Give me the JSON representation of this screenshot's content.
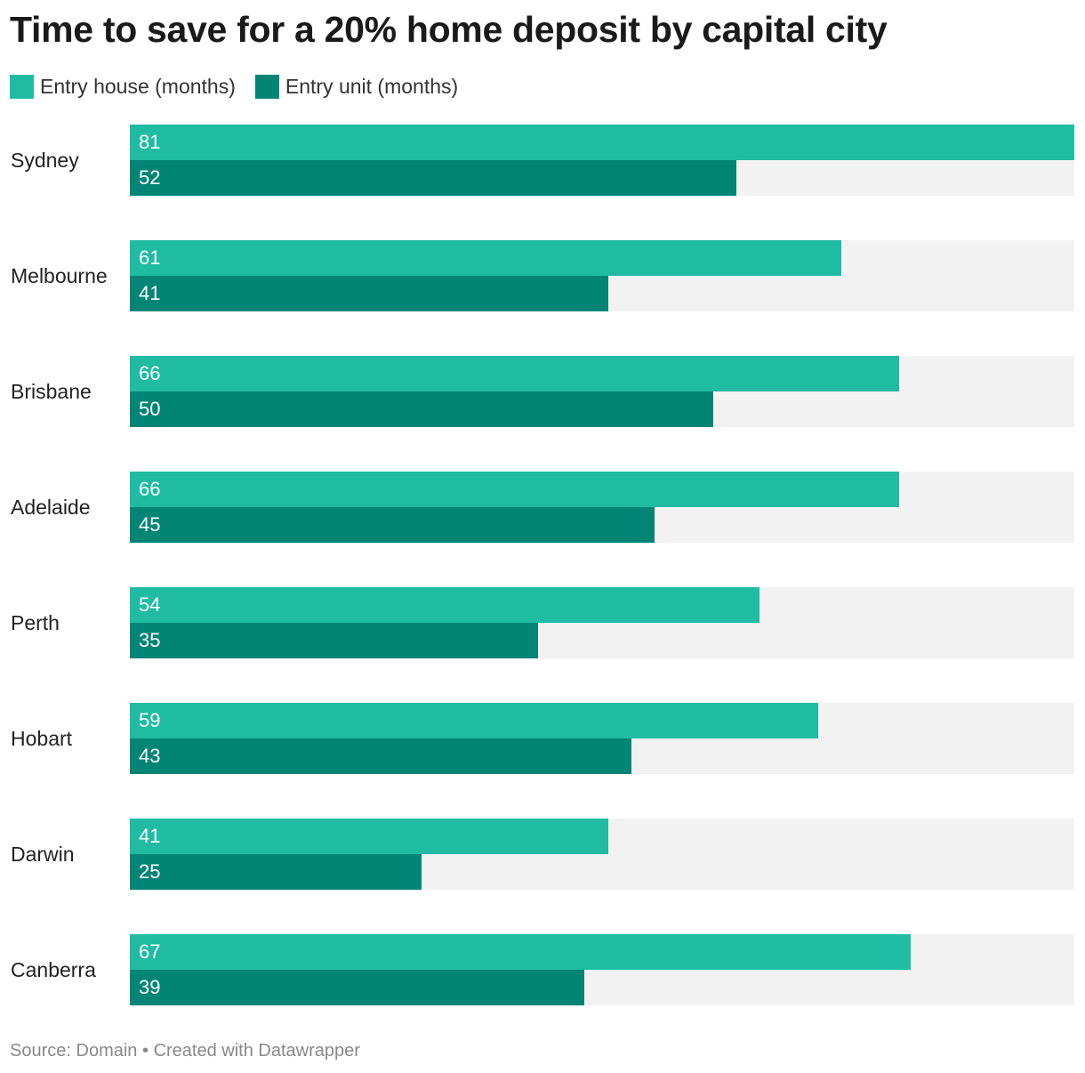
{
  "title": "Time to save for a 20% home deposit by capital city",
  "footer": {
    "source_label": "Source:",
    "source": "Domain",
    "separator": "•",
    "credit": "Created with Datawrapper"
  },
  "colors": {
    "house": "#1fbba3",
    "unit": "#038575",
    "track": "#f2f2f2"
  },
  "chart_data": {
    "type": "bar",
    "orientation": "horizontal",
    "title": "Time to save for a 20% home deposit by capital city",
    "categories": [
      "Sydney",
      "Melbourne",
      "Brisbane",
      "Adelaide",
      "Perth",
      "Hobart",
      "Darwin",
      "Canberra"
    ],
    "series": [
      {
        "name": "Entry house (months)",
        "color": "#1fbba3",
        "values": [
          81,
          61,
          66,
          66,
          54,
          59,
          41,
          67
        ]
      },
      {
        "name": "Entry unit (months)",
        "color": "#038575",
        "values": [
          52,
          41,
          50,
          45,
          35,
          43,
          25,
          39
        ]
      }
    ],
    "xlim": [
      0,
      81
    ],
    "legend": "top-left",
    "grid": false,
    "data_labels": true
  }
}
